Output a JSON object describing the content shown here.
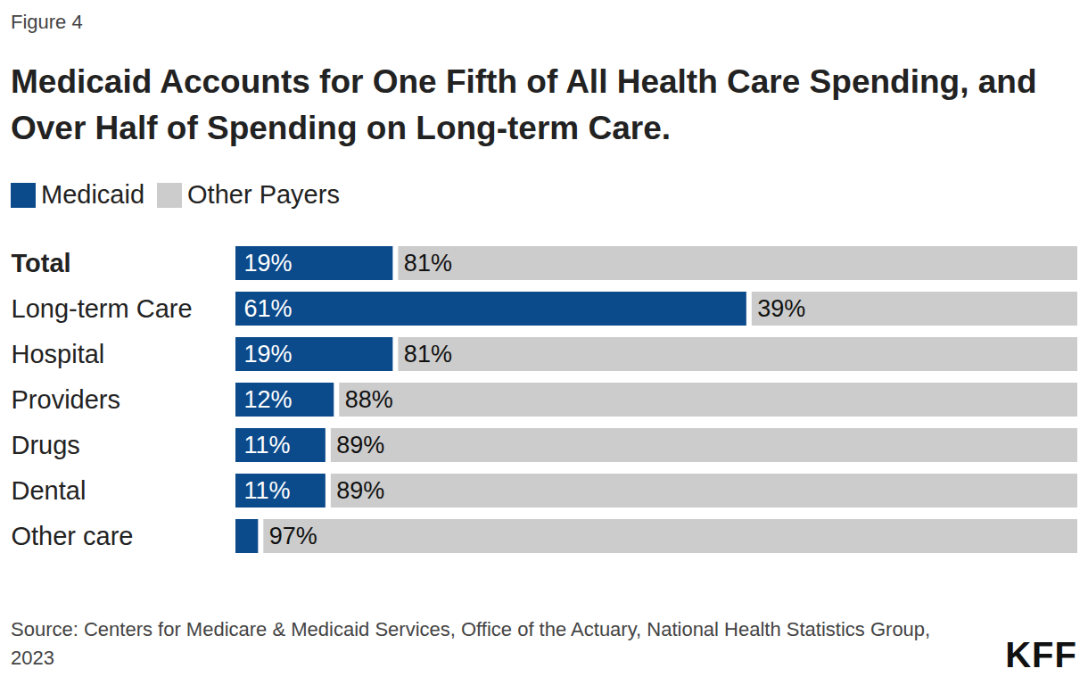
{
  "chart_data": {
    "type": "bar",
    "orientation": "horizontal",
    "stacked": true,
    "figure_label": "Figure 4",
    "title": "Medicaid Accounts for One Fifth of All Health Care Spending, and Over Half of Spending on Long-term Care.",
    "source": "Source: Centers for Medicare & Medicaid Services, Office of the Actuary, National Health Statistics Group, 2023",
    "logo": "KFF",
    "categories": [
      "Total",
      "Long-term Care",
      "Hospital",
      "Providers",
      "Drugs",
      "Dental",
      "Other care"
    ],
    "series": [
      {
        "name": "Medicaid",
        "color": "#0b4a8b",
        "values": [
          19,
          61,
          19,
          12,
          11,
          11,
          3
        ],
        "value_labels": [
          "19%",
          "61%",
          "19%",
          "12%",
          "11%",
          "11%",
          null
        ]
      },
      {
        "name": "Other Payers",
        "color": "#cccccc",
        "values": [
          81,
          39,
          81,
          88,
          89,
          89,
          97
        ],
        "value_labels": [
          "81%",
          "39%",
          "81%",
          "88%",
          "89%",
          "89%",
          "97%"
        ]
      }
    ],
    "xlim": [
      0,
      100
    ],
    "data_labels": true,
    "tick_labels": "y",
    "grid": false,
    "legend": "top-left"
  }
}
